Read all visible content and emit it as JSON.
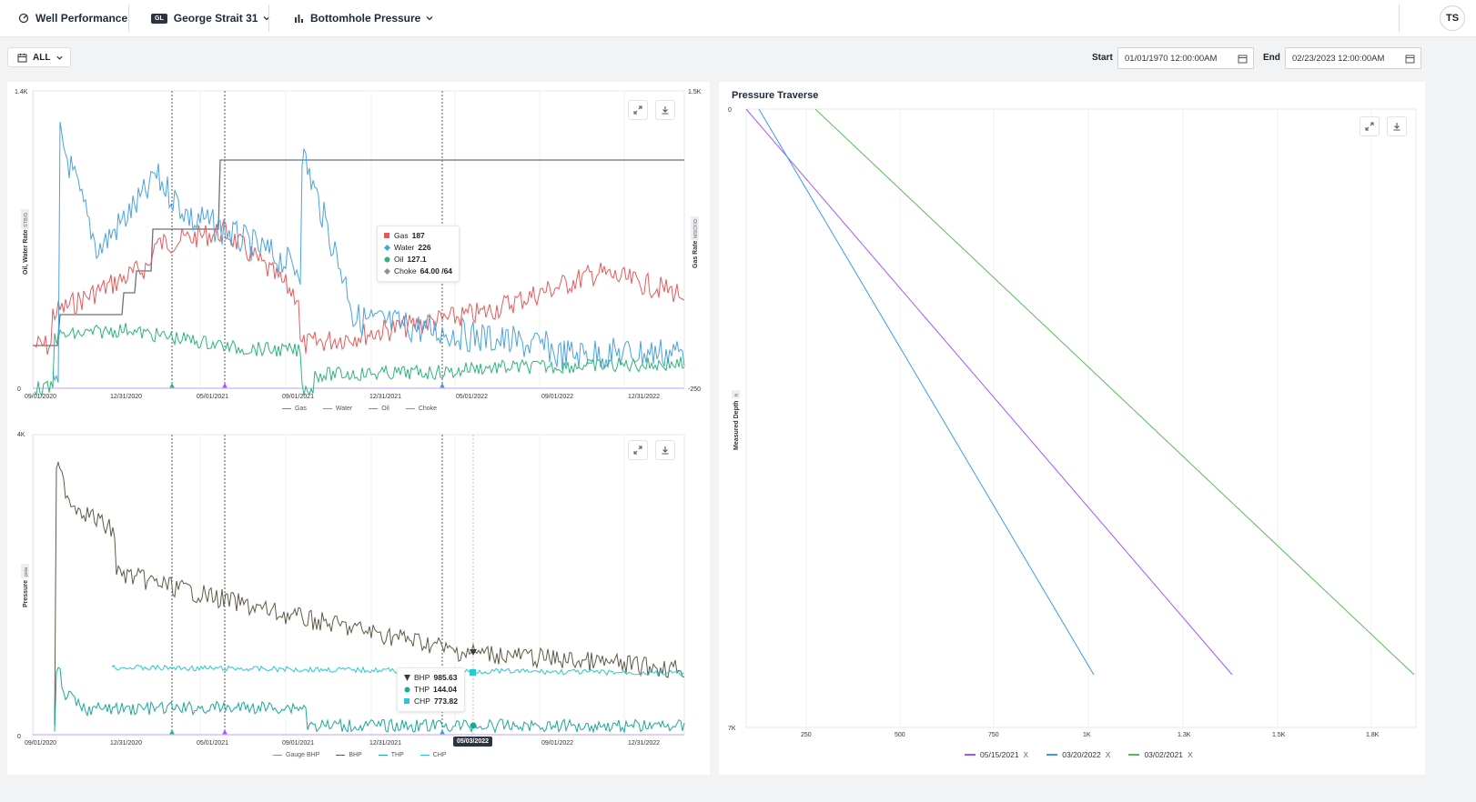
{
  "header": {
    "app_title": "Well Performance",
    "well_badge": "GL",
    "well_name": "George Strait 31",
    "view_name": "Bottomhole Pressure",
    "user_initials": "TS"
  },
  "filters": {
    "range_label": "ALL",
    "start_label": "Start",
    "start_value": "01/01/1970 12:00:00AM",
    "end_label": "End",
    "end_value": "02/23/2023 12:00:00AM"
  },
  "top_chart": {
    "y_left_label": "Oil, Water Rate",
    "y_left_unit": "STB/D",
    "y_right_label": "Gas Rate",
    "y_right_unit": "MSCF/D",
    "y_left_ticks": [
      "1.4K",
      "0"
    ],
    "y_right_ticks": [
      "1.5K",
      "-250"
    ],
    "x_ticks": [
      "09/01/2020",
      "12/31/2020",
      "05/01/2021",
      "09/01/2021",
      "12/31/2021",
      "05/01/2022",
      "09/01/2022",
      "12/31/2022"
    ],
    "tooltip": {
      "gas_label": "Gas",
      "gas_value": "187",
      "water_label": "Water",
      "water_value": "226",
      "oil_label": "Oil",
      "oil_value": "127.1",
      "choke_label": "Choke",
      "choke_value": "64.00 /64"
    },
    "legend": [
      "Gas",
      "Water",
      "Oil",
      "Choke"
    ]
  },
  "bottom_chart": {
    "y_label": "Pressure",
    "y_unit": "psia",
    "y_ticks": [
      "4K",
      "0"
    ],
    "x_ticks": [
      "09/01/2020",
      "12/31/2020",
      "05/01/2021",
      "09/01/2021",
      "12/31/2021",
      "09/01/2022",
      "12/31/2022"
    ],
    "hover_date": "05/03/2022",
    "tooltip": {
      "bhp_label": "BHP",
      "bhp_value": "985.63",
      "thp_label": "THP",
      "thp_value": "144.04",
      "chp_label": "CHP",
      "chp_value": "773.82"
    },
    "legend": [
      "Gauge BHP",
      "BHP",
      "THP",
      "CHP"
    ]
  },
  "traverse": {
    "title": "Pressure Traverse",
    "y_label": "Measured Depth",
    "y_unit": "ft",
    "y_ticks": [
      "0",
      "7K"
    ],
    "x_ticks": [
      "250",
      "500",
      "750",
      "1K",
      "1.3K",
      "1.5K",
      "1.8K"
    ],
    "legend": [
      {
        "label": "05/15/2021",
        "color": "#a855f7"
      },
      {
        "label": "03/20/2022",
        "color": "#3b9be8"
      },
      {
        "label": "03/02/2021",
        "color": "#5cb85c"
      }
    ],
    "remove_glyph": "X"
  },
  "colors": {
    "gas": "#e85a5a",
    "water": "#4aa3e0",
    "oil": "#2db57a",
    "choke": "#8a8f98",
    "bhp": "#5f5a45",
    "thp": "#1aa89a",
    "chp": "#28c9cf",
    "gauge_bhp": "#8a8f98"
  }
}
